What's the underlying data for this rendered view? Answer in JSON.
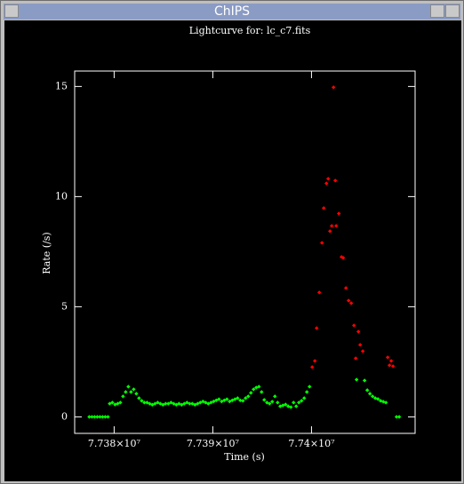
{
  "window": {
    "title": "ChIPS"
  },
  "chart_data": {
    "type": "scatter",
    "title": "Lightcurve for: lc_c7.fits",
    "xlabel": "Time (s)",
    "ylabel": "Rate (/s)",
    "xlim": [
      77376000,
      77410500
    ],
    "ylim": [
      -0.75,
      15.7
    ],
    "xticks": [
      {
        "value": 77380000,
        "label": "7.738×10⁷"
      },
      {
        "value": 77390000,
        "label": "7.739×10⁷"
      },
      {
        "value": 77400000,
        "label": "7.74×10⁷"
      }
    ],
    "yticks": [
      0,
      5,
      10,
      15
    ],
    "series": [
      {
        "color": "#00ff00",
        "x": [
          77377480,
          77377750,
          77378020,
          77378290,
          77378560,
          77378830,
          77379100,
          77379370,
          77379550,
          77379820,
          77380090,
          77380360,
          77380630,
          77380900,
          77381170,
          77381440,
          77381710,
          77381980,
          77382250,
          77382520,
          77382790,
          77383060,
          77383330,
          77383600,
          77383870,
          77384140,
          77384410,
          77384680,
          77384950,
          77385220,
          77385490,
          77385760,
          77386030,
          77386300,
          77386570,
          77386840,
          77387110,
          77387380,
          77387650,
          77387920,
          77388190,
          77388460,
          77388730,
          77389000,
          77389270,
          77389540,
          77389810,
          77390080,
          77390350,
          77390620,
          77390890,
          77391160,
          77391430,
          77391700,
          77391970,
          77392240,
          77392510,
          77392780,
          77393050,
          77393320,
          77393590,
          77393860,
          77394130,
          77394400,
          77394670,
          77394940,
          77395210,
          77395480,
          77395750,
          77396020,
          77396290,
          77396560,
          77396830,
          77397100,
          77397370,
          77397640,
          77397910,
          77398180,
          77398450,
          77398720,
          77398990,
          77399260,
          77399530,
          77399800,
          77404570,
          77405380,
          77405650,
          77405920,
          77406190,
          77406460,
          77406730,
          77407000,
          77407270,
          77407540,
          77408620,
          77408890
        ],
        "values": [
          0,
          0,
          0,
          0,
          0,
          0,
          0,
          0,
          0.6,
          0.65,
          0.56,
          0.6,
          0.65,
          0.93,
          1.13,
          1.37,
          1.13,
          1.25,
          1.05,
          0.85,
          0.73,
          0.65,
          0.65,
          0.6,
          0.55,
          0.6,
          0.65,
          0.6,
          0.55,
          0.6,
          0.6,
          0.65,
          0.6,
          0.55,
          0.6,
          0.55,
          0.6,
          0.65,
          0.6,
          0.6,
          0.55,
          0.6,
          0.65,
          0.7,
          0.65,
          0.6,
          0.65,
          0.7,
          0.75,
          0.8,
          0.7,
          0.75,
          0.8,
          0.7,
          0.75,
          0.8,
          0.85,
          0.75,
          0.73,
          0.85,
          0.93,
          1.09,
          1.25,
          1.33,
          1.37,
          1.13,
          0.77,
          0.65,
          0.6,
          0.69,
          0.93,
          0.65,
          0.48,
          0.52,
          0.56,
          0.48,
          0.44,
          0.65,
          0.48,
          0.65,
          0.73,
          0.85,
          1.13,
          1.37,
          1.69,
          1.65,
          1.21,
          1.05,
          0.93,
          0.85,
          0.81,
          0.73,
          0.69,
          0.65,
          0,
          0
        ]
      },
      {
        "color": "#ff0000",
        "x": [
          77400070,
          77400340,
          77400520,
          77400790,
          77401060,
          77401240,
          77401510,
          77401690,
          77401870,
          77402050,
          77402230,
          77402410,
          77402500,
          77402770,
          77403040,
          77403220,
          77403490,
          77403760,
          77404030,
          77404300,
          77404480,
          77404750,
          77404930,
          77405200,
          77407720,
          77407900,
          77408080,
          77408260
        ],
        "values": [
          2.26,
          2.54,
          4.03,
          5.65,
          7.9,
          9.48,
          10.6,
          10.81,
          8.43,
          8.67,
          14.96,
          10.73,
          8.67,
          9.23,
          7.26,
          7.22,
          5.85,
          5.28,
          5.16,
          4.15,
          2.66,
          3.87,
          3.27,
          2.98,
          2.7,
          2.34,
          2.54,
          2.3
        ]
      }
    ]
  }
}
